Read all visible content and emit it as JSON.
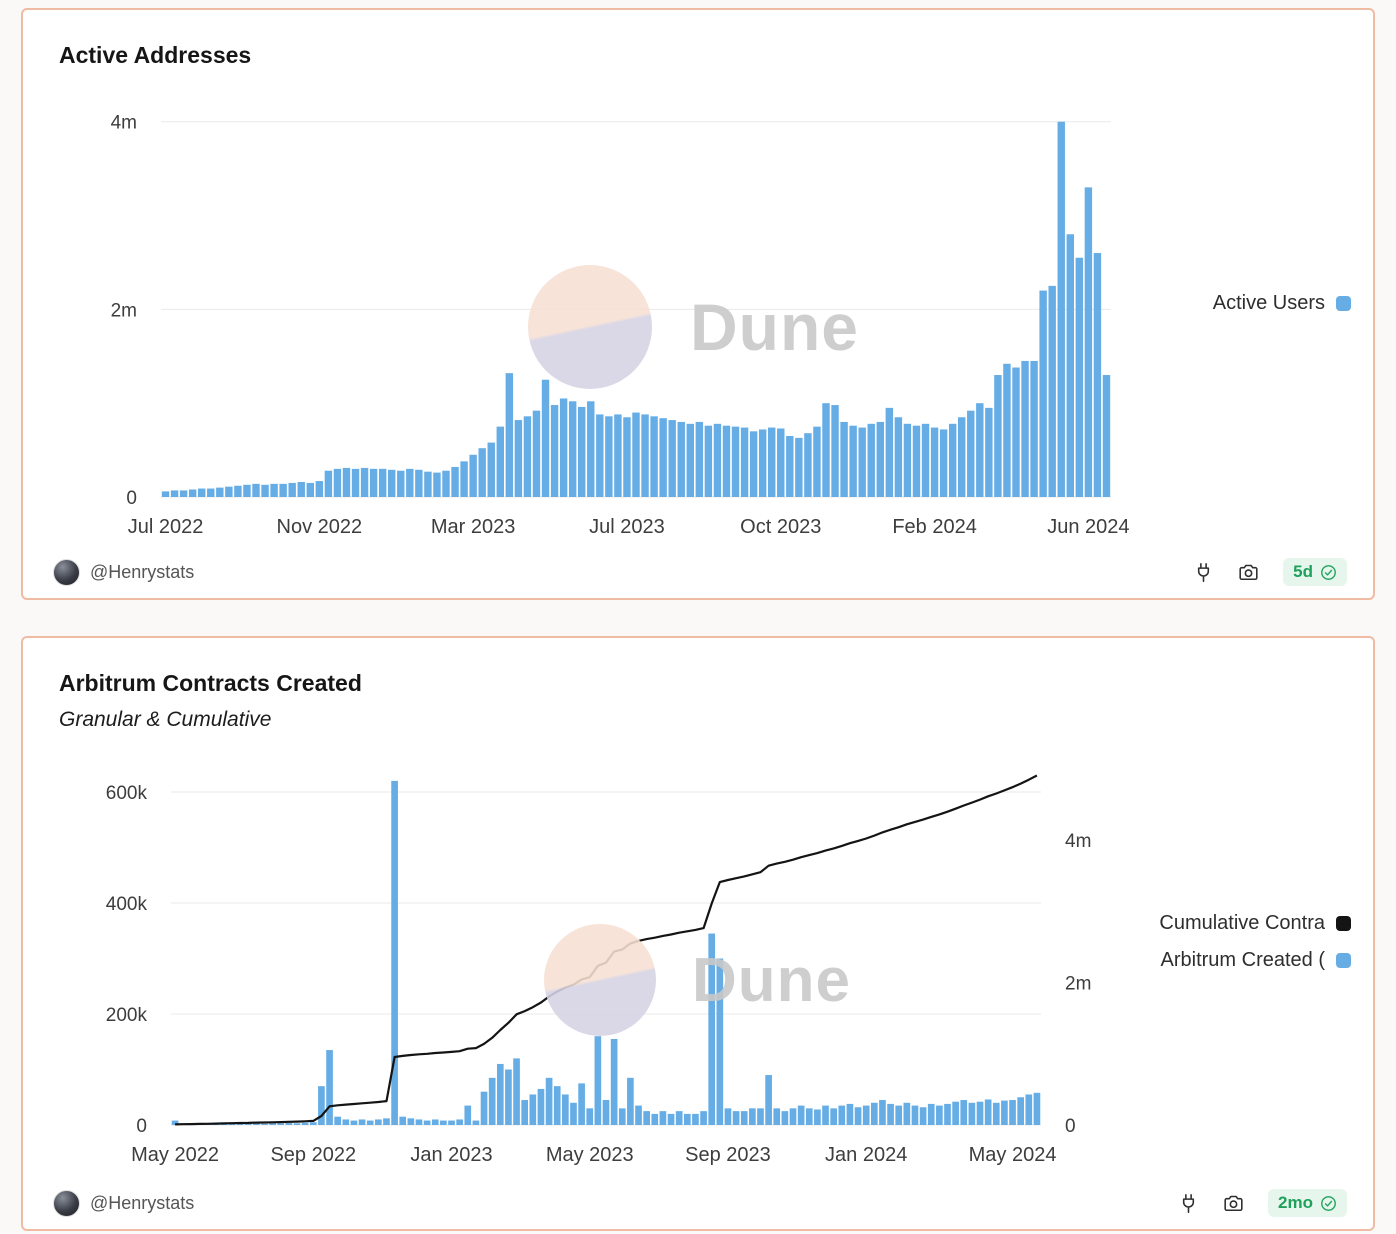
{
  "watermark": {
    "text": "Dune"
  },
  "theme": {
    "bar_blue": "#66ADE5",
    "line_black": "#141414",
    "card_border_salmon": "#F0BBA3",
    "badge_green": "#1FA15C",
    "badge_green_bg": "#E6F6EC"
  },
  "cards": [
    {
      "title": "Active Addresses",
      "legend": [
        {
          "label": "Active Users",
          "color": "#66ADE5"
        }
      ],
      "footer": {
        "author": "@Henrystats",
        "updated": "5d"
      }
    },
    {
      "title": "Arbitrum Contracts Created",
      "subtitle": "Granular & Cumulative",
      "legend": [
        {
          "label": "Cumulative Contra",
          "color": "#141414"
        },
        {
          "label": "Arbitrum Created (",
          "color": "#66ADE5"
        }
      ],
      "footer": {
        "author": "@Henrystats",
        "updated": "2mo"
      }
    }
  ],
  "chart_data": [
    {
      "type": "bar",
      "title": "Active Addresses",
      "x_unit": "week",
      "x_range": [
        "Jul 2022",
        "Jun 2024"
      ],
      "unit": "millions of active addresses",
      "ylim_left": [
        0,
        4.05
      ],
      "grid": true,
      "legend_position": "right",
      "yticks_left": [
        {
          "v": 0,
          "label": "0"
        },
        {
          "v": 2,
          "label": "2m"
        },
        {
          "v": 4,
          "label": "4m"
        }
      ],
      "xticks": [
        {
          "i": 0,
          "label": "Jul 2022"
        },
        {
          "i": 17,
          "label": "Nov 2022"
        },
        {
          "i": 34,
          "label": "Mar 2023"
        },
        {
          "i": 51,
          "label": "Jul 2023"
        },
        {
          "i": 68,
          "label": "Oct 2023"
        },
        {
          "i": 85,
          "label": "Feb 2024"
        },
        {
          "i": 102,
          "label": "Jun 2024"
        }
      ],
      "bars": {
        "name": "Active Users",
        "color": "#66ADE5",
        "values": [
          0.06,
          0.07,
          0.07,
          0.08,
          0.09,
          0.09,
          0.1,
          0.11,
          0.12,
          0.13,
          0.14,
          0.13,
          0.14,
          0.14,
          0.15,
          0.16,
          0.15,
          0.17,
          0.28,
          0.3,
          0.31,
          0.3,
          0.31,
          0.3,
          0.3,
          0.29,
          0.28,
          0.3,
          0.29,
          0.27,
          0.26,
          0.28,
          0.32,
          0.38,
          0.45,
          0.52,
          0.58,
          0.75,
          1.32,
          0.82,
          0.86,
          0.92,
          1.25,
          0.98,
          1.05,
          1.02,
          0.96,
          1.02,
          0.88,
          0.86,
          0.88,
          0.85,
          0.9,
          0.88,
          0.86,
          0.84,
          0.82,
          0.8,
          0.78,
          0.8,
          0.76,
          0.78,
          0.76,
          0.75,
          0.74,
          0.7,
          0.72,
          0.74,
          0.73,
          0.65,
          0.63,
          0.68,
          0.75,
          1.0,
          0.98,
          0.8,
          0.76,
          0.74,
          0.78,
          0.8,
          0.95,
          0.85,
          0.78,
          0.76,
          0.78,
          0.74,
          0.72,
          0.78,
          0.85,
          0.92,
          1.0,
          0.95,
          1.3,
          1.42,
          1.38,
          1.45,
          1.45,
          2.2,
          2.25,
          4.0,
          2.8,
          2.55,
          3.3,
          2.6,
          1.3
        ]
      }
    },
    {
      "type": "bar+line",
      "title": "Arbitrum Contracts Created",
      "subtitle": "Granular & Cumulative",
      "x_unit": "week",
      "x_range": [
        "May 2022",
        "May 2024"
      ],
      "grid": true,
      "legend_position": "right",
      "ylim_left": [
        0,
        600
      ],
      "ylim_right": [
        0,
        4.674
      ],
      "yticks_left": [
        {
          "v": 0,
          "label": "0"
        },
        {
          "v": 200,
          "label": "200k"
        },
        {
          "v": 400,
          "label": "400k"
        },
        {
          "v": 600,
          "label": "600k"
        }
      ],
      "yticks_right": [
        {
          "v": 0,
          "label": "0"
        },
        {
          "v": 2,
          "label": "2m"
        },
        {
          "v": 4,
          "label": "4m"
        }
      ],
      "xticks": [
        {
          "i": 0,
          "label": "May 2022"
        },
        {
          "i": 17,
          "label": "Sep 2022"
        },
        {
          "i": 34,
          "label": "Jan 2023"
        },
        {
          "i": 51,
          "label": "May 2023"
        },
        {
          "i": 68,
          "label": "Sep 2023"
        },
        {
          "i": 85,
          "label": "Jan 2024"
        },
        {
          "i": 103,
          "label": "May 2024"
        }
      ],
      "bars": {
        "name": "Arbitrum Created Contracts",
        "unit": "thousands of contracts per week",
        "color": "#66ADE5",
        "values": [
          8,
          3,
          2,
          2,
          2,
          3,
          2,
          3,
          3,
          2,
          3,
          2,
          3,
          3,
          4,
          3,
          4,
          5,
          70,
          135,
          15,
          10,
          8,
          10,
          8,
          10,
          12,
          620,
          15,
          12,
          10,
          8,
          10,
          8,
          8,
          10,
          35,
          8,
          60,
          85,
          110,
          100,
          120,
          45,
          55,
          65,
          85,
          70,
          55,
          40,
          75,
          30,
          160,
          45,
          155,
          30,
          85,
          35,
          25,
          20,
          25,
          20,
          25,
          20,
          20,
          25,
          345,
          300,
          30,
          25,
          25,
          30,
          30,
          90,
          30,
          25,
          30,
          35,
          30,
          28,
          35,
          30,
          35,
          38,
          32,
          35,
          40,
          45,
          38,
          35,
          40,
          35,
          32,
          38,
          35,
          38,
          42,
          45,
          40,
          42,
          46,
          40,
          44,
          45,
          50,
          55,
          58
        ]
      },
      "line": {
        "name": "Cumulative Contracts",
        "unit": "millions of contracts",
        "color": "#141414",
        "values": [
          0.008,
          0.011,
          0.013,
          0.015,
          0.017,
          0.02,
          0.022,
          0.025,
          0.028,
          0.03,
          0.033,
          0.035,
          0.038,
          0.041,
          0.045,
          0.048,
          0.052,
          0.057,
          0.127,
          0.262,
          0.277,
          0.287,
          0.295,
          0.305,
          0.313,
          0.323,
          0.335,
          0.955,
          0.97,
          0.982,
          0.992,
          1.0,
          1.01,
          1.018,
          1.026,
          1.036,
          1.071,
          1.079,
          1.139,
          1.224,
          1.334,
          1.434,
          1.554,
          1.599,
          1.654,
          1.719,
          1.804,
          1.874,
          1.929,
          1.969,
          2.044,
          2.074,
          2.234,
          2.279,
          2.434,
          2.464,
          2.549,
          2.584,
          2.609,
          2.629,
          2.654,
          2.674,
          2.699,
          2.719,
          2.739,
          2.764,
          3.109,
          3.409,
          3.439,
          3.464,
          3.489,
          3.519,
          3.549,
          3.639,
          3.669,
          3.694,
          3.724,
          3.759,
          3.789,
          3.817,
          3.852,
          3.882,
          3.917,
          3.955,
          3.987,
          4.022,
          4.062,
          4.107,
          4.145,
          4.18,
          4.22,
          4.255,
          4.287,
          4.325,
          4.36,
          4.398,
          4.44,
          4.485,
          4.525,
          4.567,
          4.613,
          4.653,
          4.697,
          4.742,
          4.792,
          4.847,
          4.905
        ]
      }
    }
  ]
}
